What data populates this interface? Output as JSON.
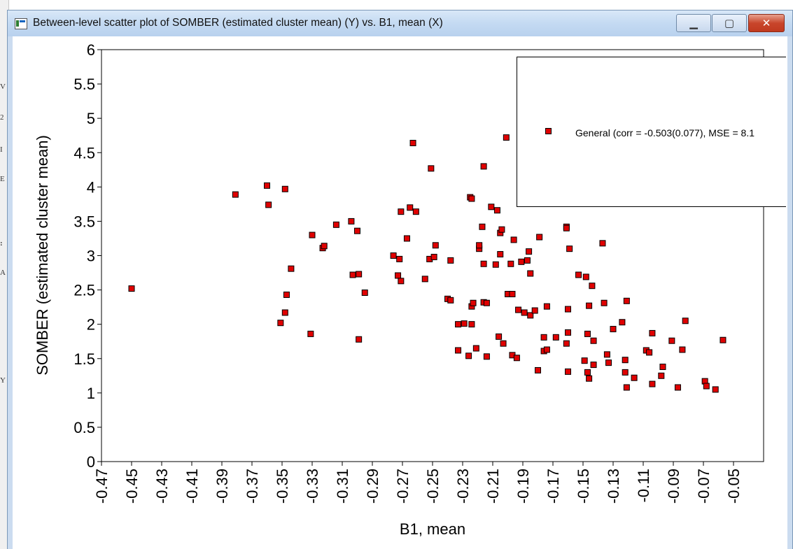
{
  "window": {
    "title": "Between-level scatter plot of SOMBER (estimated cluster mean) (Y) vs. B1, mean (X)",
    "controls": {
      "minimize_icon": "minimize-icon",
      "maximize_icon": "maximize-icon",
      "close_icon": "close-icon"
    }
  },
  "background_glyphs": [
    "V",
    "2",
    "I",
    "E",
    ":",
    "A",
    "Y"
  ],
  "colors": {
    "marker": "#e00000",
    "marker_border": "#000000",
    "axis": "#000000"
  },
  "chart_data": {
    "type": "scatter",
    "xlabel": "B1, mean",
    "ylabel": "SOMBER (estimated cluster mean)",
    "xlim": [
      -0.47,
      -0.03
    ],
    "ylim": [
      0,
      6
    ],
    "xticks": [
      "-0.47",
      "-0.45",
      "-0.43",
      "-0.41",
      "-0.39",
      "-0.37",
      "-0.35",
      "-0.33",
      "-0.31",
      "-0.29",
      "-0.27",
      "-0.25",
      "-0.23",
      "-0.21",
      "-0.19",
      "-0.17",
      "-0.15",
      "-0.13",
      "-0.11",
      "-0.09",
      "-0.07",
      "-0.05"
    ],
    "yticks": [
      "0",
      "0.5",
      "1",
      "1.5",
      "2",
      "2.5",
      "3",
      "3.5",
      "4",
      "4.5",
      "5",
      "5.5",
      "6"
    ],
    "grid": false,
    "legend_position": "top-right",
    "series": [
      {
        "name": "General (corr = -0.503(0.077), MSE = 8.1",
        "points": [
          [
            -0.45,
            2.52
          ],
          [
            -0.381,
            3.89
          ],
          [
            -0.36,
            4.02
          ],
          [
            -0.359,
            3.74
          ],
          [
            -0.348,
            3.97
          ],
          [
            -0.344,
            2.81
          ],
          [
            -0.347,
            2.43
          ],
          [
            -0.348,
            2.17
          ],
          [
            -0.351,
            2.02
          ],
          [
            -0.331,
            1.86
          ],
          [
            -0.33,
            3.3
          ],
          [
            -0.323,
            3.11
          ],
          [
            -0.322,
            3.14
          ],
          [
            -0.314,
            3.45
          ],
          [
            -0.304,
            3.5
          ],
          [
            -0.303,
            2.72
          ],
          [
            -0.3,
            3.36
          ],
          [
            -0.299,
            2.73
          ],
          [
            -0.299,
            1.78
          ],
          [
            -0.295,
            2.46
          ],
          [
            -0.276,
            3.0
          ],
          [
            -0.273,
            2.71
          ],
          [
            -0.272,
            2.95
          ],
          [
            -0.271,
            2.63
          ],
          [
            -0.271,
            3.64
          ],
          [
            -0.267,
            3.25
          ],
          [
            -0.265,
            3.7
          ],
          [
            -0.263,
            4.64
          ],
          [
            -0.261,
            3.64
          ],
          [
            -0.255,
            2.66
          ],
          [
            -0.251,
            4.27
          ],
          [
            -0.252,
            2.95
          ],
          [
            -0.249,
            2.98
          ],
          [
            -0.248,
            3.15
          ],
          [
            -0.24,
            2.37
          ],
          [
            -0.238,
            2.93
          ],
          [
            -0.238,
            2.35
          ],
          [
            -0.233,
            1.62
          ],
          [
            -0.233,
            2.0
          ],
          [
            -0.229,
            2.01
          ],
          [
            -0.226,
            1.54
          ],
          [
            -0.225,
            3.85
          ],
          [
            -0.224,
            3.83
          ],
          [
            -0.224,
            2.26
          ],
          [
            -0.223,
            2.31
          ],
          [
            -0.224,
            2.0
          ],
          [
            -0.221,
            1.65
          ],
          [
            -0.219,
            3.1
          ],
          [
            -0.219,
            3.15
          ],
          [
            -0.217,
            3.42
          ],
          [
            -0.216,
            2.88
          ],
          [
            -0.216,
            2.32
          ],
          [
            -0.216,
            4.3
          ],
          [
            -0.214,
            2.31
          ],
          [
            -0.214,
            1.53
          ],
          [
            -0.211,
            3.71
          ],
          [
            -0.208,
            2.87
          ],
          [
            -0.207,
            3.66
          ],
          [
            -0.206,
            1.82
          ],
          [
            -0.205,
            3.33
          ],
          [
            -0.205,
            3.02
          ],
          [
            -0.204,
            3.38
          ],
          [
            -0.203,
            1.72
          ],
          [
            -0.201,
            4.72
          ],
          [
            -0.2,
            2.44
          ],
          [
            -0.198,
            2.88
          ],
          [
            -0.197,
            1.55
          ],
          [
            -0.197,
            2.44
          ],
          [
            -0.196,
            3.23
          ],
          [
            -0.194,
            1.51
          ],
          [
            -0.193,
            2.21
          ],
          [
            -0.191,
            2.91
          ],
          [
            -0.189,
            2.17
          ],
          [
            -0.187,
            2.93
          ],
          [
            -0.186,
            3.06
          ],
          [
            -0.185,
            2.74
          ],
          [
            -0.185,
            2.13
          ],
          [
            -0.182,
            2.2
          ],
          [
            -0.18,
            1.33
          ],
          [
            -0.179,
            3.27
          ],
          [
            -0.176,
            1.81
          ],
          [
            -0.176,
            1.61
          ],
          [
            -0.174,
            2.26
          ],
          [
            -0.174,
            1.63
          ],
          [
            -0.168,
            1.81
          ],
          [
            -0.161,
            3.42
          ],
          [
            -0.161,
            3.4
          ],
          [
            -0.161,
            1.72
          ],
          [
            -0.16,
            2.22
          ],
          [
            -0.16,
            1.88
          ],
          [
            -0.159,
            3.1
          ],
          [
            -0.16,
            1.31
          ],
          [
            -0.153,
            2.72
          ],
          [
            -0.149,
            1.47
          ],
          [
            -0.148,
            2.69
          ],
          [
            -0.147,
            1.86
          ],
          [
            -0.147,
            1.3
          ],
          [
            -0.146,
            2.27
          ],
          [
            -0.146,
            1.21
          ],
          [
            -0.144,
            2.56
          ],
          [
            -0.143,
            1.41
          ],
          [
            -0.143,
            1.76
          ],
          [
            -0.137,
            3.18
          ],
          [
            -0.136,
            2.31
          ],
          [
            -0.134,
            1.56
          ],
          [
            -0.133,
            1.44
          ],
          [
            -0.13,
            1.93
          ],
          [
            -0.124,
            2.03
          ],
          [
            -0.122,
            1.48
          ],
          [
            -0.122,
            1.3
          ],
          [
            -0.121,
            2.34
          ],
          [
            -0.121,
            1.08
          ],
          [
            -0.116,
            1.22
          ],
          [
            -0.108,
            1.62
          ],
          [
            -0.106,
            1.59
          ],
          [
            -0.104,
            1.87
          ],
          [
            -0.104,
            1.13
          ],
          [
            -0.098,
            1.25
          ],
          [
            -0.097,
            1.38
          ],
          [
            -0.091,
            1.76
          ],
          [
            -0.087,
            1.08
          ],
          [
            -0.084,
            1.63
          ],
          [
            -0.082,
            2.05
          ],
          [
            -0.069,
            1.17
          ],
          [
            -0.068,
            1.1
          ],
          [
            -0.062,
            1.05
          ],
          [
            -0.057,
            1.77
          ]
        ]
      }
    ]
  }
}
